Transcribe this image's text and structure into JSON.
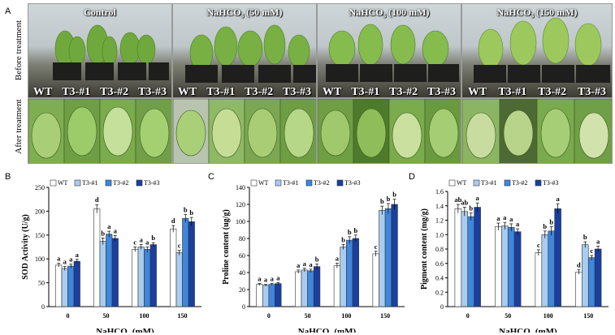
{
  "panel_labels": {
    "a": "A",
    "b": "B",
    "c": "C",
    "d": "D"
  },
  "photo_panel": {
    "row_labels": [
      "Before treatment",
      "After treatment"
    ],
    "conditions": [
      "Control",
      "NaHCO₃ (50 mM)",
      "NaHCO₃ (100 mM)",
      "NaHCO₃ (150 mM)"
    ],
    "genotypes": [
      "WT",
      "T3-#1",
      "T3-#2",
      "T3-#3"
    ]
  },
  "colors": {
    "wt": "#ffffff",
    "t3_1": "#a9cdf0",
    "t3_2": "#3f86dc",
    "t3_3": "#1a3f9e"
  },
  "chart_data": [
    {
      "type": "bar",
      "panel": "B",
      "categories": [
        "0",
        "50",
        "100",
        "150"
      ],
      "xlabel": "NaHCO₃ (mM)",
      "ylabel": "SOD Activity (U/g)",
      "ylim": [
        0,
        250
      ],
      "yticks": [
        "0",
        "50",
        "100",
        "150",
        "200",
        "250"
      ],
      "legend_placement": "top",
      "series": [
        {
          "name": "WT",
          "values": [
            87,
            205,
            120,
            163
          ],
          "errors": [
            4,
            9,
            5,
            7
          ],
          "letters": [
            "a",
            "d",
            "c",
            "d"
          ]
        },
        {
          "name": "T3-#1",
          "values": [
            80,
            137,
            125,
            113
          ],
          "errors": [
            4,
            7,
            5,
            5
          ],
          "letters": [
            "a",
            "b",
            "a",
            "c"
          ]
        },
        {
          "name": "T3-#2",
          "values": [
            85,
            152,
            120,
            185
          ],
          "errors": [
            4,
            6,
            5,
            8
          ],
          "letters": [
            "a",
            "a",
            "a",
            "b"
          ]
        },
        {
          "name": "T3-#3",
          "values": [
            95,
            143,
            130,
            178
          ],
          "errors": [
            4,
            6,
            4,
            9
          ],
          "letters": [
            "a",
            "a",
            "b",
            "b"
          ]
        }
      ]
    },
    {
      "type": "bar",
      "panel": "C",
      "categories": [
        "0",
        "50",
        "100",
        "150"
      ],
      "xlabel": "NaHCO₃ (mM)",
      "ylabel": "Proline content (ug/g)",
      "ylim": [
        0,
        140
      ],
      "yticks": [
        "0",
        "20",
        "40",
        "60",
        "80",
        "100",
        "120",
        "140"
      ],
      "legend_placement": "top",
      "series": [
        {
          "name": "WT",
          "values": [
            26,
            41,
            48,
            62
          ],
          "errors": [
            1,
            2,
            3,
            3
          ],
          "letters": [
            "a",
            "a",
            "a",
            "c"
          ]
        },
        {
          "name": "T3-#1",
          "values": [
            25,
            43,
            70,
            113
          ],
          "errors": [
            1,
            2,
            3,
            5
          ],
          "letters": [
            "a",
            "a",
            "b",
            "b"
          ]
        },
        {
          "name": "T3-#2",
          "values": [
            26,
            42,
            78,
            115
          ],
          "errors": [
            1,
            2,
            4,
            6
          ],
          "letters": [
            "a",
            "a",
            "b",
            "b"
          ]
        },
        {
          "name": "T3-#3",
          "values": [
            27,
            47,
            80,
            120
          ],
          "errors": [
            1,
            3,
            4,
            6
          ],
          "letters": [
            "a",
            "b",
            "b",
            "b"
          ]
        }
      ]
    },
    {
      "type": "bar",
      "panel": "D",
      "categories": [
        "0",
        "50",
        "100",
        "150"
      ],
      "xlabel": "NaHCO₃ (mM)",
      "ylabel": "Pigment content (mg/g)",
      "ylim": [
        0,
        1.6
      ],
      "yticks": [
        "0",
        "0.2",
        "0.4",
        "0.6",
        "0.8",
        "1.0",
        "1.2",
        "1.4",
        "1.6"
      ],
      "legend_placement": "top",
      "series": [
        {
          "name": "WT",
          "values": [
            1.36,
            1.11,
            0.75,
            0.48
          ],
          "errors": [
            0.06,
            0.05,
            0.04,
            0.03
          ],
          "letters": [
            "ab",
            "a",
            "c",
            "d"
          ]
        },
        {
          "name": "T3-#1",
          "values": [
            1.32,
            1.12,
            1.0,
            0.86
          ],
          "errors": [
            0.06,
            0.05,
            0.05,
            0.04
          ],
          "letters": [
            "ab",
            "a",
            "b",
            "b"
          ]
        },
        {
          "name": "T3-#2",
          "values": [
            1.25,
            1.1,
            1.05,
            0.68
          ],
          "errors": [
            0.05,
            0.05,
            0.06,
            0.03
          ],
          "letters": [
            "b",
            "a",
            "b",
            "c"
          ]
        },
        {
          "name": "T3-#3",
          "values": [
            1.38,
            1.04,
            1.36,
            0.8
          ],
          "errors": [
            0.06,
            0.04,
            0.07,
            0.04
          ],
          "letters": [
            "a",
            "a",
            "a",
            "a"
          ]
        }
      ]
    }
  ]
}
